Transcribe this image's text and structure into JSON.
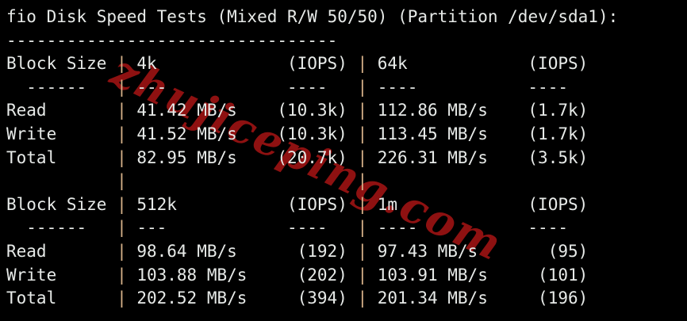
{
  "terminal": {
    "title": "fio Disk Speed Tests (Mixed R/W 50/50) (Partition /dev/sda1):",
    "title_underline": "---------------------------------",
    "glyphs": {
      "pipe": "|"
    },
    "colors": {
      "background": "#000000",
      "text": "#e7eae8",
      "pipe": "#d8b38a",
      "watermark": "#8e1111"
    },
    "watermark_text": "zhujiceping.com",
    "tables": [
      {
        "header": {
          "label": "Block Size",
          "col1": {
            "name": "4k",
            "unit": "(IOPS)"
          },
          "col2": {
            "name": "64k",
            "unit": "(IOPS)"
          }
        },
        "divider": {
          "label": "------",
          "col1": {
            "dash": "---",
            "unit_dash": "----"
          },
          "col2": {
            "dash": "----",
            "unit_dash": "----"
          }
        },
        "rows": [
          {
            "label": "Read",
            "col1": {
              "value": "41.42 MB/s",
              "iops": "(10.3k)"
            },
            "col2": {
              "value": "112.86 MB/s",
              "iops": "(1.7k)"
            }
          },
          {
            "label": "Write",
            "col1": {
              "value": "41.52 MB/s",
              "iops": "(10.3k)"
            },
            "col2": {
              "value": "113.45 MB/s",
              "iops": "(1.7k)"
            }
          },
          {
            "label": "Total",
            "col1": {
              "value": "82.95 MB/s",
              "iops": "(20.7k)"
            },
            "col2": {
              "value": "226.31 MB/s",
              "iops": "(3.5k)"
            }
          }
        ]
      },
      {
        "header": {
          "label": "Block Size",
          "col1": {
            "name": "512k",
            "unit": "(IOPS)"
          },
          "col2": {
            "name": "1m",
            "unit": "(IOPS)"
          }
        },
        "divider": {
          "label": "------",
          "col1": {
            "dash": "---",
            "unit_dash": "----"
          },
          "col2": {
            "dash": "----",
            "unit_dash": "----"
          }
        },
        "rows": [
          {
            "label": "Read",
            "col1": {
              "value": "98.64 MB/s",
              "iops": "(192)"
            },
            "col2": {
              "value": "97.43 MB/s",
              "iops": "(95)"
            }
          },
          {
            "label": "Write",
            "col1": {
              "value": "103.88 MB/s",
              "iops": "(202)"
            },
            "col2": {
              "value": "103.91 MB/s",
              "iops": "(101)"
            }
          },
          {
            "label": "Total",
            "col1": {
              "value": "202.52 MB/s",
              "iops": "(394)"
            },
            "col2": {
              "value": "201.34 MB/s",
              "iops": "(196)"
            }
          }
        ]
      }
    ]
  }
}
